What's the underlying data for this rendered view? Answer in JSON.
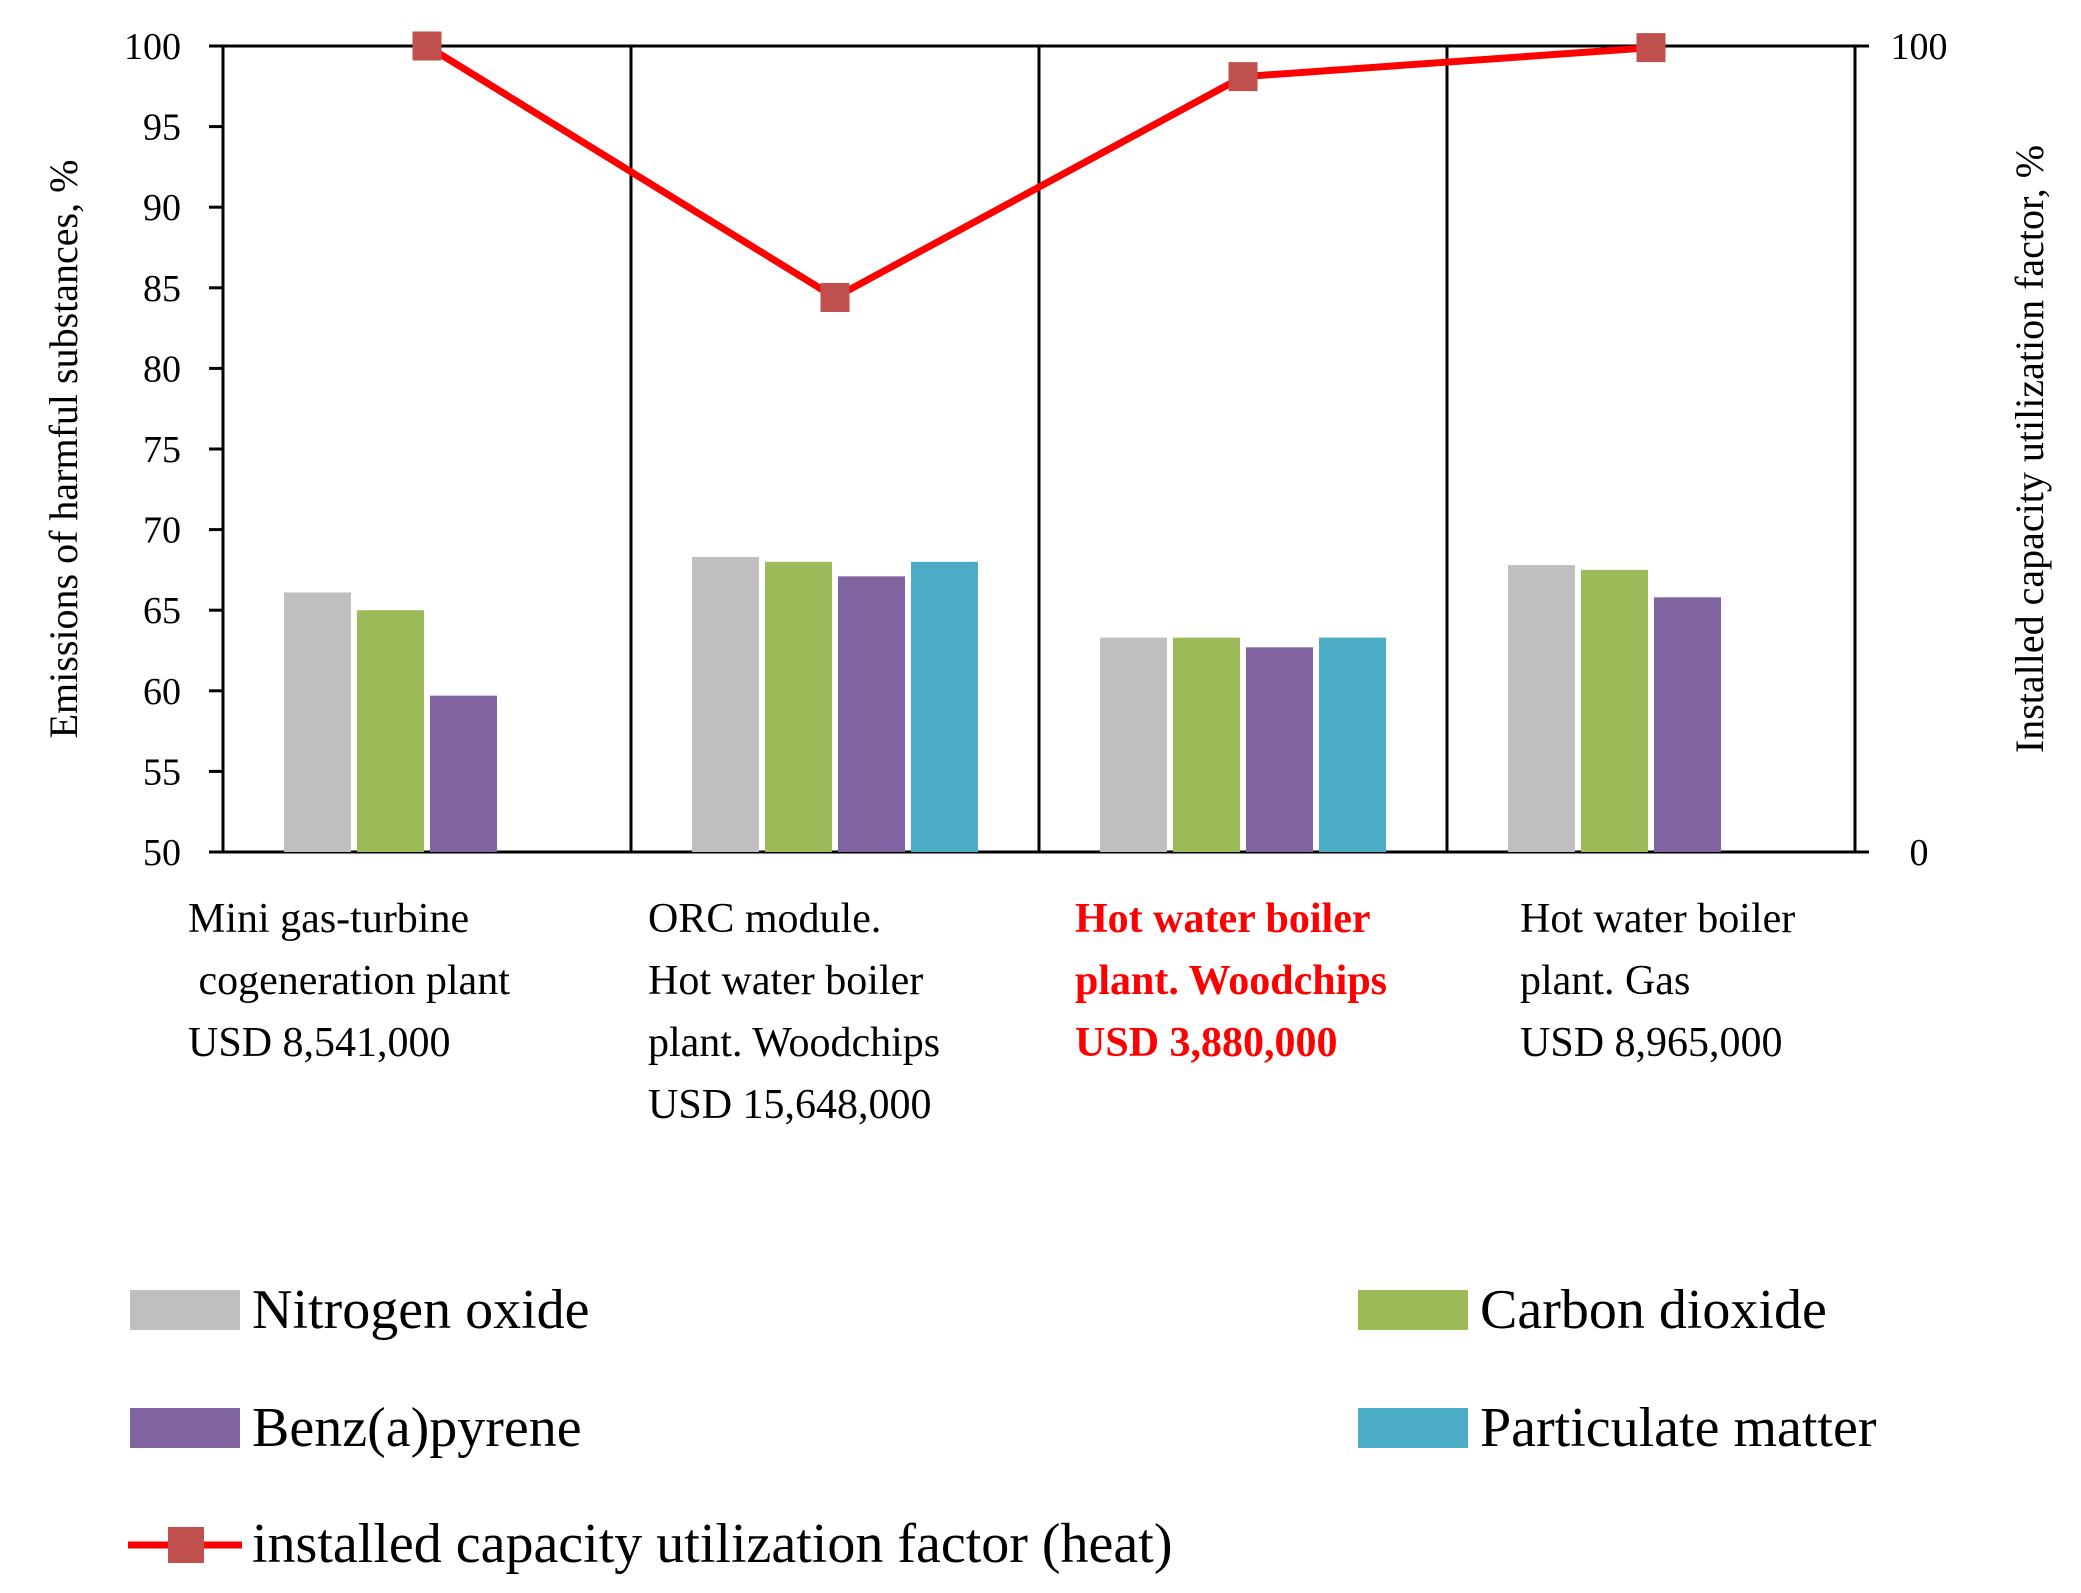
{
  "chart_data": {
    "type": "bar",
    "categories": [
      {
        "lines": [
          "Mini gas-turbine",
          " cogeneration plant",
          "USD 8,541,000"
        ],
        "highlight": false
      },
      {
        "lines": [
          "ORC module.",
          "Hot water boiler",
          "plant. Woodchips",
          "USD 15,648,000"
        ],
        "highlight": false
      },
      {
        "lines": [
          "Hot water boiler",
          "plant. Woodchips",
          "USD 3,880,000"
        ],
        "highlight": true
      },
      {
        "lines": [
          "Hot water boiler",
          "plant. Gas",
          "USD 8,965,000"
        ],
        "highlight": false
      }
    ],
    "series": [
      {
        "name": "Nitrogen oxide",
        "color": "#bfbfbf",
        "values": [
          66.1,
          68.3,
          63.3,
          67.8
        ]
      },
      {
        "name": "Carbon dioxide",
        "color": "#9bbb59",
        "values": [
          65.0,
          68.0,
          63.3,
          67.5
        ]
      },
      {
        "name": "Benz(a)pyrene",
        "color": "#8064a2",
        "values": [
          59.7,
          67.1,
          62.7,
          65.8
        ]
      },
      {
        "name": "Particulate matter",
        "color": "#4bacc6",
        "values": [
          null,
          68.0,
          63.3,
          null
        ]
      }
    ],
    "line_series": {
      "name": "installed capacity utilization factor (heat)",
      "color": "#ff0000",
      "marker_color": "#c0504d",
      "values": [
        100,
        68.8,
        96.2,
        99.8
      ]
    },
    "ylabel": "Emissions of harmful substances, %",
    "ylim": [
      50,
      100
    ],
    "yticks": [
      "50",
      "55",
      "60",
      "65",
      "70",
      "75",
      "80",
      "85",
      "90",
      "95",
      "100"
    ],
    "y2label": "Installed capacity utilization factor, %",
    "y2lim": [
      0,
      100
    ],
    "y2ticks": [
      "0",
      "100"
    ],
    "legend_position": "bottom"
  }
}
